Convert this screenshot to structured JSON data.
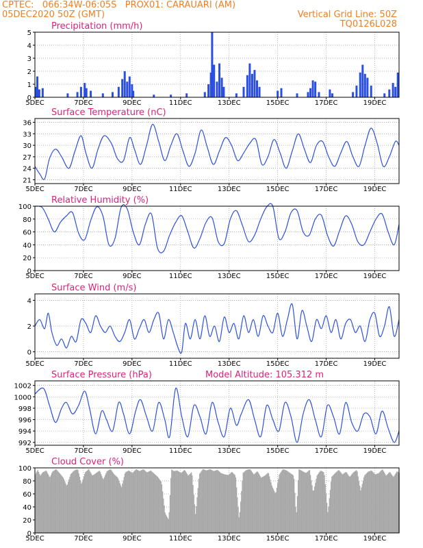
{
  "header": {
    "line1": "CPTEC:   066:34W-06:05S   PROX01: CARAUARI (AM)",
    "line2": "05DEC2020 50Z (GMT)",
    "vgrid": "Vertical Grid Line: 50Z",
    "code": "TQ0126L028"
  },
  "colors": {
    "header": "#f07f20",
    "title": "#e0207a",
    "line": "#2a4fe0",
    "cloud": "#a8a8a8"
  },
  "chart_data": [
    {
      "type": "bar",
      "title": "Precipitation (mm/h)",
      "ylim": [
        0,
        5
      ],
      "yticks": [
        0,
        1,
        2,
        3,
        4,
        5
      ],
      "xticks": [
        "5DEC",
        "7DEC",
        "9DEC",
        "11DEC",
        "13DEC",
        "15DEC",
        "17DEC",
        "19DEC"
      ],
      "xlim_days": [
        5,
        20
      ],
      "bars": [
        [
          5.05,
          0.8
        ],
        [
          5.1,
          1.6
        ],
        [
          5.18,
          0.6
        ],
        [
          5.32,
          0.7
        ],
        [
          6.35,
          0.3
        ],
        [
          6.75,
          0.4
        ],
        [
          6.9,
          0.8
        ],
        [
          7.05,
          1.1
        ],
        [
          7.12,
          0.7
        ],
        [
          7.3,
          0.5
        ],
        [
          7.8,
          0.3
        ],
        [
          8.2,
          0.4
        ],
        [
          8.45,
          0.8
        ],
        [
          8.6,
          1.4
        ],
        [
          8.7,
          2.0
        ],
        [
          8.8,
          1.2
        ],
        [
          8.9,
          1.6
        ],
        [
          9.0,
          1.0
        ],
        [
          9.05,
          0.5
        ],
        [
          9.9,
          0.2
        ],
        [
          10.6,
          0.2
        ],
        [
          11.25,
          0.3
        ],
        [
          12.0,
          0.4
        ],
        [
          12.15,
          1.0
        ],
        [
          12.25,
          1.9
        ],
        [
          12.3,
          5.0
        ],
        [
          12.38,
          2.5
        ],
        [
          12.5,
          1.2
        ],
        [
          12.6,
          2.6
        ],
        [
          12.7,
          1.5
        ],
        [
          12.78,
          0.8
        ],
        [
          13.3,
          0.3
        ],
        [
          13.6,
          0.8
        ],
        [
          13.75,
          1.7
        ],
        [
          13.85,
          2.6
        ],
        [
          13.95,
          1.8
        ],
        [
          14.05,
          2.1
        ],
        [
          14.15,
          1.3
        ],
        [
          14.25,
          0.8
        ],
        [
          15.0,
          0.5
        ],
        [
          15.15,
          0.7
        ],
        [
          15.8,
          0.3
        ],
        [
          16.25,
          0.4
        ],
        [
          16.35,
          0.7
        ],
        [
          16.45,
          1.3
        ],
        [
          16.55,
          1.2
        ],
        [
          16.7,
          0.4
        ],
        [
          17.15,
          0.6
        ],
        [
          17.25,
          0.3
        ],
        [
          18.1,
          0.4
        ],
        [
          18.25,
          0.9
        ],
        [
          18.4,
          1.9
        ],
        [
          18.5,
          2.5
        ],
        [
          18.6,
          1.8
        ],
        [
          18.7,
          1.5
        ],
        [
          18.85,
          0.9
        ],
        [
          19.4,
          0.3
        ],
        [
          19.6,
          0.6
        ],
        [
          19.75,
          1.1
        ],
        [
          19.85,
          0.8
        ],
        [
          19.95,
          1.9
        ]
      ]
    },
    {
      "type": "line",
      "title": "Surface Temperature (nC)",
      "ylim": [
        20,
        37
      ],
      "yticks": [
        21,
        24,
        27,
        30,
        33,
        36
      ],
      "xticks": [
        "5DEC",
        "7DEC",
        "9DEC",
        "11DEC",
        "13DEC",
        "15DEC",
        "17DEC",
        "19DEC"
      ],
      "xlim_days": [
        5,
        20
      ],
      "x": [
        5.0,
        5.2,
        5.4,
        5.6,
        5.85,
        6.1,
        6.4,
        6.65,
        6.9,
        7.1,
        7.35,
        7.6,
        7.85,
        8.15,
        8.4,
        8.65,
        8.9,
        9.1,
        9.35,
        9.6,
        9.85,
        10.1,
        10.35,
        10.6,
        10.85,
        11.1,
        11.35,
        11.6,
        11.85,
        12.1,
        12.35,
        12.6,
        12.85,
        13.1,
        13.35,
        13.6,
        13.85,
        14.1,
        14.35,
        14.6,
        14.85,
        15.1,
        15.35,
        15.6,
        15.85,
        16.1,
        16.35,
        16.6,
        16.85,
        17.1,
        17.35,
        17.6,
        17.85,
        18.1,
        18.35,
        18.6,
        18.85,
        19.1,
        19.35,
        19.6,
        19.85,
        20.0
      ],
      "y": [
        24.5,
        22.5,
        21.2,
        26.5,
        29.0,
        27.0,
        24.0,
        28.5,
        32.5,
        28.0,
        24.0,
        29.0,
        32.5,
        30.5,
        26.5,
        26.0,
        32.0,
        29.0,
        25.0,
        30.0,
        35.5,
        31.0,
        26.0,
        30.0,
        33.0,
        28.5,
        24.5,
        28.0,
        34.0,
        29.5,
        25.0,
        28.5,
        32.0,
        30.0,
        26.0,
        28.0,
        30.5,
        31.5,
        25.0,
        27.0,
        31.5,
        28.0,
        24.0,
        28.5,
        33.0,
        29.0,
        25.5,
        30.0,
        31.0,
        27.0,
        24.5,
        28.0,
        31.0,
        27.0,
        24.5,
        30.0,
        34.5,
        30.5,
        24.5,
        27.0,
        31.0,
        30.0
      ]
    },
    {
      "type": "line",
      "title": "Relative Humidity (%)",
      "ylim": [
        0,
        100
      ],
      "yticks": [
        0,
        20,
        40,
        60,
        80,
        100
      ],
      "xticks": [
        "5DEC",
        "7DEC",
        "9DEC",
        "11DEC",
        "13DEC",
        "15DEC",
        "17DEC",
        "19DEC"
      ],
      "xlim_days": [
        5,
        20
      ],
      "x": [
        5.0,
        5.3,
        5.55,
        5.8,
        6.05,
        6.3,
        6.55,
        6.8,
        7.05,
        7.3,
        7.55,
        7.8,
        8.05,
        8.3,
        8.55,
        8.8,
        9.05,
        9.3,
        9.55,
        9.8,
        10.05,
        10.3,
        10.55,
        10.8,
        11.05,
        11.3,
        11.55,
        11.8,
        12.05,
        12.3,
        12.55,
        12.8,
        13.05,
        13.3,
        13.55,
        13.8,
        14.05,
        14.3,
        14.55,
        14.8,
        15.05,
        15.3,
        15.55,
        15.8,
        16.05,
        16.3,
        16.55,
        16.8,
        17.05,
        17.3,
        17.55,
        17.8,
        18.05,
        18.3,
        18.55,
        18.8,
        19.05,
        19.3,
        19.55,
        19.8,
        20.0
      ],
      "y": [
        100,
        98,
        80,
        60,
        75,
        85,
        90,
        58,
        48,
        78,
        99,
        85,
        40,
        50,
        98,
        96,
        60,
        40,
        72,
        88,
        35,
        30,
        55,
        75,
        85,
        60,
        35,
        50,
        75,
        82,
        45,
        42,
        80,
        93,
        70,
        45,
        55,
        80,
        99,
        100,
        50,
        60,
        90,
        93,
        60,
        55,
        80,
        86,
        55,
        38,
        62,
        85,
        72,
        45,
        40,
        60,
        80,
        88,
        60,
        40,
        72
      ]
    },
    {
      "type": "line",
      "title": "Surface Wind (m/s)",
      "ylim": [
        -0.5,
        4.5
      ],
      "yticks": [
        0,
        2,
        4
      ],
      "xticks": [
        "5DEC",
        "7DEC",
        "9DEC",
        "11DEC",
        "13DEC",
        "15DEC",
        "17DEC",
        "19DEC"
      ],
      "xlim_days": [
        5,
        20
      ],
      "x": [
        5.0,
        5.2,
        5.4,
        5.55,
        5.7,
        5.9,
        6.1,
        6.3,
        6.5,
        6.7,
        6.9,
        7.1,
        7.3,
        7.5,
        7.7,
        7.9,
        8.1,
        8.3,
        8.5,
        8.7,
        8.9,
        9.1,
        9.3,
        9.5,
        9.7,
        9.9,
        10.1,
        10.3,
        10.5,
        10.7,
        10.9,
        11.05,
        11.2,
        11.4,
        11.6,
        11.8,
        12.0,
        12.2,
        12.4,
        12.6,
        12.8,
        13.0,
        13.2,
        13.4,
        13.6,
        13.8,
        14.0,
        14.2,
        14.4,
        14.6,
        14.8,
        15.0,
        15.2,
        15.4,
        15.6,
        15.8,
        16.0,
        16.2,
        16.4,
        16.6,
        16.8,
        17.0,
        17.2,
        17.4,
        17.6,
        17.8,
        18.0,
        18.2,
        18.4,
        18.6,
        18.8,
        19.0,
        19.2,
        19.4,
        19.6,
        19.8,
        20.0
      ],
      "y": [
        2.0,
        2.5,
        1.8,
        3.0,
        1.5,
        0.5,
        1.0,
        0.3,
        1.2,
        0.8,
        2.5,
        2.2,
        1.5,
        2.8,
        2.0,
        1.5,
        2.0,
        1.2,
        0.8,
        1.5,
        2.5,
        1.0,
        1.8,
        2.5,
        1.5,
        2.5,
        3.0,
        1.0,
        2.5,
        1.5,
        0.3,
        0.0,
        2.2,
        1.0,
        2.5,
        1.0,
        2.8,
        1.2,
        2.0,
        0.8,
        2.7,
        1.5,
        2.2,
        1.0,
        2.8,
        1.5,
        2.5,
        1.2,
        2.8,
        2.0,
        1.5,
        3.0,
        1.2,
        2.5,
        3.7,
        1.0,
        3.2,
        2.0,
        0.8,
        2.5,
        1.8,
        2.8,
        1.5,
        2.5,
        1.0,
        2.2,
        2.5,
        1.5,
        2.0,
        0.8,
        2.5,
        3.0,
        1.2,
        2.0,
        3.5,
        1.2,
        2.5
      ]
    },
    {
      "type": "line",
      "title": "Surface Pressure (hPa)",
      "annotation": "Model Altitude: 105.312 m",
      "ylim": [
        991.5,
        1002.8
      ],
      "yticks": [
        992,
        994,
        996,
        998,
        1000,
        1002
      ],
      "xticks": [
        "5DEC",
        "7DEC",
        "9DEC",
        "11DEC",
        "13DEC",
        "15DEC",
        "17DEC",
        "19DEC"
      ],
      "xlim_days": [
        5,
        20
      ],
      "x": [
        5.0,
        5.35,
        5.6,
        5.85,
        6.1,
        6.3,
        6.55,
        6.8,
        7.05,
        7.25,
        7.5,
        7.75,
        7.95,
        8.2,
        8.45,
        8.65,
        8.9,
        9.15,
        9.35,
        9.6,
        9.85,
        10.1,
        10.35,
        10.55,
        10.8,
        11.05,
        11.3,
        11.55,
        11.8,
        12.05,
        12.3,
        12.55,
        12.8,
        13.05,
        13.3,
        13.5,
        13.8,
        14.05,
        14.3,
        14.55,
        14.8,
        15.05,
        15.3,
        15.55,
        15.8,
        16.05,
        16.3,
        16.55,
        16.8,
        17.05,
        17.3,
        17.55,
        17.8,
        18.05,
        18.3,
        18.55,
        18.8,
        19.05,
        19.3,
        19.55,
        19.8,
        20.0
      ],
      "y": [
        1000.5,
        1001.5,
        998.5,
        995.5,
        998.0,
        999.0,
        997.0,
        998.5,
        1001.0,
        998.0,
        993.5,
        997.5,
        996.0,
        994.0,
        999.0,
        997.0,
        993.5,
        997.5,
        999.5,
        996.5,
        994.0,
        999.0,
        996.0,
        993.0,
        1001.5,
        996.5,
        993.0,
        998.5,
        996.5,
        993.5,
        999.0,
        995.5,
        993.0,
        998.0,
        995.0,
        997.0,
        999.5,
        996.0,
        993.0,
        998.5,
        996.0,
        994.0,
        999.0,
        996.5,
        992.0,
        997.0,
        999.5,
        996.0,
        993.0,
        998.5,
        996.5,
        993.5,
        999.0,
        995.5,
        994.0,
        997.0,
        996.5,
        993.5,
        997.5,
        994.5,
        992.0,
        994.0
      ]
    },
    {
      "type": "area",
      "title": "Cloud Cover (%)",
      "ylim": [
        0,
        100
      ],
      "yticks": [
        0,
        20,
        40,
        60,
        80,
        100
      ],
      "xticks": [
        "5DEC",
        "7DEC",
        "9DEC",
        "11DEC",
        "13DEC",
        "15DEC",
        "17DEC",
        "19DEC"
      ],
      "xlim_days": [
        5,
        20
      ],
      "x": [
        5.0,
        5.1,
        5.2,
        5.3,
        5.45,
        5.6,
        5.7,
        5.85,
        6.0,
        6.15,
        6.3,
        6.45,
        6.6,
        6.75,
        6.9,
        7.05,
        7.2,
        7.35,
        7.5,
        7.65,
        7.8,
        7.95,
        8.1,
        8.25,
        8.4,
        8.55,
        8.7,
        8.85,
        9.0,
        9.15,
        9.3,
        9.45,
        9.6,
        9.75,
        9.9,
        10.05,
        10.2,
        10.35,
        10.5,
        10.6,
        10.7,
        10.85,
        11.0,
        11.15,
        11.3,
        11.45,
        11.6,
        11.75,
        11.9,
        12.05,
        12.2,
        12.35,
        12.5,
        12.65,
        12.8,
        12.95,
        13.1,
        13.25,
        13.4,
        13.55,
        13.7,
        13.85,
        14.0,
        14.15,
        14.3,
        14.45,
        14.6,
        14.75,
        14.9,
        15.05,
        15.2,
        15.35,
        15.5,
        15.65,
        15.75,
        15.85,
        16.0,
        16.15,
        16.3,
        16.45,
        16.6,
        16.75,
        16.9,
        17.05,
        17.2,
        17.35,
        17.5,
        17.65,
        17.8,
        17.95,
        18.1,
        18.25,
        18.4,
        18.55,
        18.7,
        18.85,
        19.0,
        19.15,
        19.3,
        19.45,
        19.6,
        19.75,
        19.9,
        20.0
      ],
      "y": [
        90,
        97,
        88,
        93,
        96,
        85,
        94,
        98,
        92,
        85,
        72,
        90,
        96,
        98,
        75,
        93,
        98,
        88,
        92,
        96,
        82,
        95,
        98,
        90,
        85,
        70,
        93,
        96,
        92,
        98,
        95,
        98,
        93,
        96,
        91,
        86,
        78,
        30,
        20,
        98,
        95,
        96,
        92,
        97,
        88,
        94,
        28,
        90,
        98,
        96,
        98,
        95,
        97,
        92,
        90,
        89,
        94,
        88,
        20,
        92,
        97,
        98,
        90,
        95,
        85,
        88,
        93,
        72,
        60,
        90,
        98,
        96,
        92,
        88,
        25,
        98,
        95,
        92,
        97,
        62,
        88,
        96,
        93,
        30,
        86,
        92,
        97,
        90,
        94,
        86,
        93,
        97,
        65,
        88,
        94,
        96,
        90,
        92,
        98,
        88,
        94,
        86,
        95,
        92
      ]
    }
  ]
}
